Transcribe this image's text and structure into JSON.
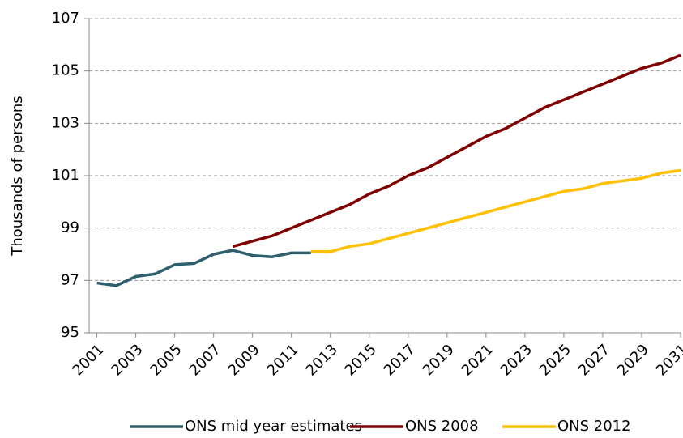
{
  "chart_data": {
    "type": "line",
    "y_label": "Thousands of persons",
    "x": [
      2001,
      2002,
      2003,
      2004,
      2005,
      2006,
      2007,
      2008,
      2009,
      2010,
      2011,
      2012,
      2013,
      2014,
      2015,
      2016,
      2017,
      2018,
      2019,
      2020,
      2021,
      2022,
      2023,
      2024,
      2025,
      2026,
      2027,
      2028,
      2029,
      2030,
      2031
    ],
    "series": [
      {
        "name": "ONS mid year estimates",
        "color": "#2e5f6e",
        "values": [
          96.9,
          96.8,
          97.15,
          97.25,
          97.6,
          97.65,
          98.0,
          98.15,
          97.95,
          97.9,
          98.05,
          98.05,
          null,
          null,
          null,
          null,
          null,
          null,
          null,
          null,
          null,
          null,
          null,
          null,
          null,
          null,
          null,
          null,
          null,
          null,
          null
        ]
      },
      {
        "name": "ONS 2008",
        "color": "#7f0000",
        "values": [
          null,
          null,
          null,
          null,
          null,
          null,
          null,
          98.3,
          98.5,
          98.7,
          99.0,
          99.3,
          99.6,
          99.9,
          100.3,
          100.6,
          101.0,
          101.3,
          101.7,
          102.1,
          102.5,
          102.8,
          103.2,
          103.6,
          103.9,
          104.2,
          104.5,
          104.8,
          105.1,
          105.3,
          105.6
        ]
      },
      {
        "name": "ONS 2012",
        "color": "#ffc000",
        "values": [
          null,
          null,
          null,
          null,
          null,
          null,
          null,
          null,
          null,
          null,
          null,
          98.1,
          98.1,
          98.3,
          98.4,
          98.6,
          98.8,
          99.0,
          99.2,
          99.4,
          99.6,
          99.8,
          100.0,
          100.2,
          100.4,
          100.5,
          100.7,
          100.8,
          100.9,
          101.1,
          101.2
        ]
      }
    ],
    "xlim": [
      2000.6,
      2031
    ],
    "xticks": [
      2001,
      2003,
      2005,
      2007,
      2009,
      2011,
      2013,
      2015,
      2017,
      2019,
      2021,
      2023,
      2025,
      2027,
      2029,
      2031
    ],
    "ylim": [
      95,
      107
    ],
    "yticks": [
      95,
      97,
      99,
      101,
      103,
      105,
      107
    ],
    "grid": true,
    "legend": "bottom"
  }
}
